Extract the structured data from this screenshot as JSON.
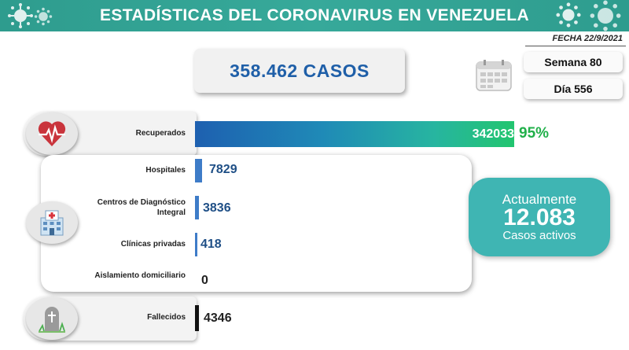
{
  "header": {
    "title": "ESTADÍSTICAS DEL CORONAVIRUS EN VENEZUELA",
    "date": "FECHA 22/9/2021",
    "bg_color": "#2e9c8e"
  },
  "summary": {
    "total_cases": "358.462 CASOS",
    "week": "Semana 80",
    "day": "Día 556"
  },
  "recovered": {
    "label": "Recuperados",
    "value": "342033",
    "percent": "95%",
    "icon": "heart-pulse-icon"
  },
  "hospitalization": {
    "icon": "hospital-icon",
    "rows": [
      {
        "label": "Hospitales",
        "value": "7829"
      },
      {
        "label": "Centros de Diagnóstico Integral",
        "value": "3836"
      },
      {
        "label": "Clínicas privadas",
        "value": "418"
      },
      {
        "label": "Aislamiento domiciliario",
        "value": "0"
      }
    ]
  },
  "active": {
    "top": "Actualmente",
    "value": "12.083",
    "bottom": "Casos activos",
    "color": "#3fb5b3"
  },
  "deaths": {
    "label": "Fallecidos",
    "value": "4346",
    "icon": "tombstone-icon"
  }
}
